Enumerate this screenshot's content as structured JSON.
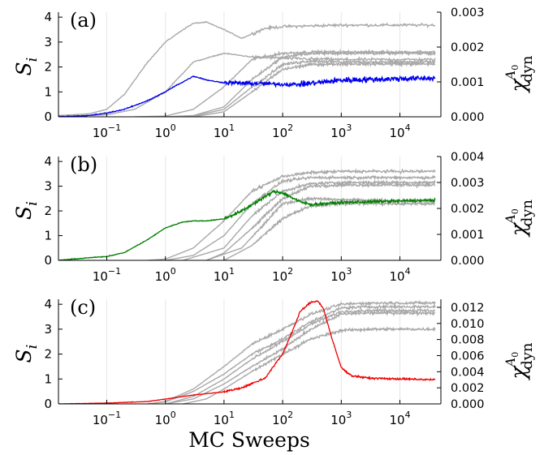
{
  "chart_data": [
    {
      "type": "line",
      "panel_label": "(a)",
      "ylabel_left_main": "S",
      "ylabel_left_sub": "i",
      "ylabel_right_main": "χ",
      "ylabel_right_sup": "A",
      "ylabel_right_sup_sub": "0",
      "ylabel_right_sub": "dyn",
      "x_scale": "log",
      "xlim": [
        0.015,
        50000
      ],
      "ylim_left": [
        0,
        4.2
      ],
      "ylim_right": [
        0,
        0.003
      ],
      "left_ticks": [
        "0",
        "1",
        "2",
        "3",
        "4"
      ],
      "right_ticks": [
        "0.000",
        "0.001",
        "0.002",
        "0.003"
      ],
      "highlight_color": "#0000ee",
      "gray_color": "#a8a8a8",
      "grid": "vertical",
      "gray_series": [
        {
          "x": [
            0.015,
            0.05,
            0.1,
            0.2,
            0.5,
            1,
            2,
            3,
            5,
            10,
            20,
            50,
            100,
            1000,
            40000
          ],
          "y": [
            0.05,
            0.12,
            0.3,
            0.9,
            2.2,
            3.0,
            3.5,
            3.75,
            3.8,
            3.5,
            3.15,
            3.55,
            3.62,
            3.68,
            3.68
          ]
        },
        {
          "x": [
            0.015,
            0.1,
            0.3,
            1,
            3,
            10,
            30,
            100,
            1000,
            40000
          ],
          "y": [
            0.02,
            0.08,
            0.3,
            1.0,
            2.2,
            2.55,
            2.4,
            2.35,
            2.3,
            2.3
          ]
        },
        {
          "x": [
            0.3,
            1,
            3,
            10,
            30,
            100,
            300,
            1000,
            40000
          ],
          "y": [
            0.0,
            0.03,
            0.3,
            1.2,
            2.3,
            2.55,
            2.6,
            2.6,
            2.6
          ]
        },
        {
          "x": [
            1,
            3,
            10,
            30,
            100,
            300,
            1000,
            40000
          ],
          "y": [
            0.0,
            0.05,
            0.4,
            1.5,
            2.4,
            2.55,
            2.55,
            2.55
          ]
        },
        {
          "x": [
            1,
            3,
            10,
            30,
            100,
            300,
            1000,
            40000
          ],
          "y": [
            0.0,
            0.03,
            0.3,
            1.2,
            2.1,
            2.25,
            2.2,
            2.2
          ]
        },
        {
          "x": [
            3,
            10,
            30,
            100,
            300,
            1000,
            40000
          ],
          "y": [
            0.0,
            0.2,
            1.0,
            1.9,
            2.1,
            2.12,
            2.12
          ]
        }
      ],
      "highlight_series": {
        "x": [
          0.015,
          0.05,
          0.1,
          0.2,
          0.5,
          1,
          1.5,
          2,
          3,
          4,
          5,
          7,
          10,
          20,
          50,
          100,
          200,
          500,
          1000,
          3000,
          10000,
          40000
        ],
        "y": [
          0.0,
          0.05,
          0.15,
          0.3,
          0.65,
          1.0,
          1.25,
          1.4,
          1.63,
          1.55,
          1.48,
          1.42,
          1.37,
          1.35,
          1.33,
          1.3,
          1.3,
          1.4,
          1.47,
          1.5,
          1.53,
          1.55
        ]
      },
      "highlight_noise_right": 6e-05
    },
    {
      "type": "line",
      "panel_label": "(b)",
      "ylabel_left_main": "S",
      "ylabel_left_sub": "i",
      "ylabel_right_main": "χ",
      "ylabel_right_sup": "A",
      "ylabel_right_sup_sub": "0",
      "ylabel_right_sub": "dyn",
      "x_scale": "log",
      "xlim": [
        0.015,
        50000
      ],
      "ylim_left": [
        0,
        4.2
      ],
      "ylim_right": [
        0,
        0.004
      ],
      "left_ticks": [
        "0",
        "1",
        "2",
        "3",
        "4"
      ],
      "right_ticks": [
        "0.000",
        "0.001",
        "0.002",
        "0.003",
        "0.004"
      ],
      "highlight_color": "#008000",
      "gray_color": "#a8a8a8",
      "grid": "vertical",
      "gray_series": [
        {
          "x": [
            0.5,
            1,
            3,
            10,
            30,
            100,
            300,
            1000,
            40000
          ],
          "y": [
            0.0,
            0.05,
            0.5,
            1.6,
            2.8,
            3.4,
            3.55,
            3.6,
            3.6
          ]
        },
        {
          "x": [
            1,
            3,
            10,
            30,
            100,
            300,
            1000,
            40000
          ],
          "y": [
            0.0,
            0.2,
            1.0,
            2.3,
            3.2,
            3.35,
            3.35,
            3.35
          ]
        },
        {
          "x": [
            2,
            10,
            30,
            100,
            300,
            1000,
            40000
          ],
          "y": [
            0.0,
            0.5,
            1.8,
            2.8,
            3.1,
            3.15,
            3.15
          ]
        },
        {
          "x": [
            5,
            10,
            30,
            100,
            300,
            1000,
            40000
          ],
          "y": [
            0.0,
            0.3,
            1.3,
            2.5,
            3.0,
            3.05,
            3.05
          ]
        },
        {
          "x": [
            5,
            20,
            50,
            100,
            300,
            1000,
            40000
          ],
          "y": [
            0.0,
            0.5,
            1.5,
            2.3,
            2.5,
            2.45,
            2.4
          ]
        },
        {
          "x": [
            10,
            30,
            100,
            300,
            1000,
            40000
          ],
          "y": [
            0.0,
            0.6,
            1.7,
            2.2,
            2.3,
            2.3
          ]
        }
      ],
      "highlight_series": {
        "x": [
          0.015,
          0.05,
          0.1,
          0.2,
          0.5,
          1,
          2,
          3,
          5,
          10,
          20,
          50,
          70,
          100,
          150,
          200,
          300,
          1000,
          40000
        ],
        "y": [
          0.0,
          0.0001,
          0.00015,
          0.0003,
          0.0008,
          0.00125,
          0.00148,
          0.00152,
          0.00152,
          0.0016,
          0.0019,
          0.00245,
          0.00265,
          0.0026,
          0.0024,
          0.00225,
          0.00215,
          0.00223,
          0.00232
        ]
      },
      "highlight_noise_right": 6e-05
    },
    {
      "type": "line",
      "panel_label": "(c)",
      "ylabel_left_main": "S",
      "ylabel_left_sub": "i",
      "ylabel_right_main": "χ",
      "ylabel_right_sup": "A",
      "ylabel_right_sup_sub": "0",
      "ylabel_right_sub": "dyn",
      "x_scale": "log",
      "xlim": [
        0.015,
        50000
      ],
      "ylim_left": [
        0,
        4.2
      ],
      "ylim_right": [
        0,
        0.013
      ],
      "left_ticks": [
        "0",
        "1",
        "2",
        "3",
        "4"
      ],
      "right_ticks": [
        "0.000",
        "0.002",
        "0.004",
        "0.006",
        "0.008",
        "0.010",
        "0.012"
      ],
      "xlabel": "MC Sweeps",
      "x_tick_labels": [
        {
          "base": "10",
          "exp": "−1"
        },
        {
          "base": "10",
          "exp": "0"
        },
        {
          "base": "10",
          "exp": "1"
        },
        {
          "base": "10",
          "exp": "2"
        },
        {
          "base": "10",
          "exp": "3"
        },
        {
          "base": "10",
          "exp": "4"
        }
      ],
      "highlight_color": "#ee0000",
      "gray_color": "#a8a8a8",
      "grid": "vertical",
      "gray_series": [
        {
          "x": [
            0.5,
            1,
            3,
            10,
            30,
            100,
            300,
            1000,
            3000,
            40000
          ],
          "y": [
            0.0,
            0.1,
            0.6,
            1.5,
            2.4,
            3.0,
            3.6,
            4.0,
            4.05,
            4.05
          ]
        },
        {
          "x": [
            0.5,
            1,
            3,
            10,
            30,
            100,
            300,
            1000,
            3000,
            40000
          ],
          "y": [
            0.0,
            0.08,
            0.5,
            1.2,
            2.0,
            2.6,
            3.3,
            3.85,
            3.9,
            3.9
          ]
        },
        {
          "x": [
            1,
            3,
            10,
            30,
            100,
            300,
            1000,
            3000,
            40000
          ],
          "y": [
            0.0,
            0.3,
            1.0,
            1.8,
            2.5,
            3.2,
            3.7,
            3.75,
            3.75
          ]
        },
        {
          "x": [
            1,
            3,
            10,
            30,
            100,
            300,
            1000,
            3000,
            40000
          ],
          "y": [
            0.0,
            0.2,
            0.8,
            1.5,
            2.2,
            3.0,
            3.6,
            3.65,
            3.65
          ]
        },
        {
          "x": [
            2,
            5,
            10,
            30,
            100,
            300,
            1000,
            3000,
            40000
          ],
          "y": [
            0.0,
            0.2,
            0.6,
            1.3,
            2.0,
            2.6,
            2.95,
            3.0,
            3.0
          ]
        }
      ],
      "highlight_series": {
        "x": [
          0.015,
          0.1,
          0.5,
          1,
          3,
          10,
          20,
          50,
          100,
          150,
          200,
          300,
          400,
          500,
          700,
          1000,
          1500,
          3000,
          10000,
          40000
        ],
        "y": [
          0.0,
          0.0001,
          0.0003,
          0.0006,
          0.0011,
          0.0015,
          0.002,
          0.0032,
          0.0062,
          0.0092,
          0.0115,
          0.0126,
          0.0128,
          0.0118,
          0.008,
          0.0045,
          0.0035,
          0.0032,
          0.0031,
          0.003
        ]
      },
      "highlight_noise_right": 0.00012
    }
  ]
}
